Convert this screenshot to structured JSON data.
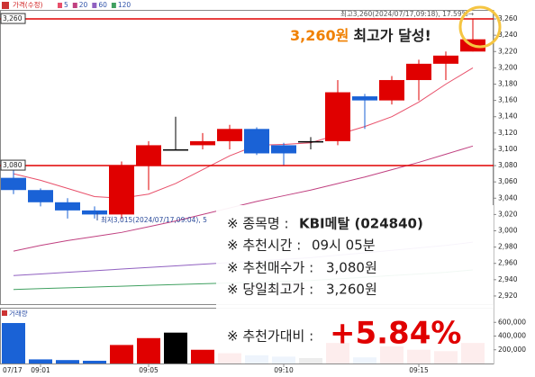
{
  "chart_data": [
    {
      "type": "candlestick",
      "date_label": "07/17",
      "categories": [
        null,
        "09:01",
        null,
        null,
        null,
        "09:05",
        null,
        null,
        null,
        null,
        "09:10",
        null,
        null,
        null,
        null,
        "09:15",
        null,
        null
      ],
      "up_color": "#e00000",
      "down_color": "#1a62d6",
      "series": [
        {
          "name": "가격(수정)",
          "color": "#d02020",
          "open": [
            3065,
            3050,
            3035,
            3025,
            3020,
            3080,
            3100,
            3105,
            3110,
            3125,
            3105,
            3110,
            3110,
            3165,
            3160,
            3185,
            3205,
            3220
          ],
          "high": [
            3075,
            3052,
            3040,
            3030,
            3085,
            3110,
            3140,
            3120,
            3130,
            3127,
            3108,
            3115,
            3185,
            3168,
            3190,
            3210,
            3220,
            3260
          ],
          "low": [
            3045,
            3030,
            3015,
            3015,
            3015,
            3050,
            3100,
            3100,
            3100,
            3093,
            3080,
            3100,
            3105,
            3125,
            3155,
            3160,
            3185,
            3220
          ],
          "close": [
            3050,
            3035,
            3025,
            3020,
            3080,
            3105,
            3100,
            3110,
            3125,
            3095,
            3095,
            3110,
            3170,
            3160,
            3185,
            3205,
            3215,
            3235
          ]
        },
        {
          "name": "5",
          "color": "#e8506a",
          "values": [
            3070,
            3062,
            3052,
            3042,
            3040,
            3045,
            3058,
            3075,
            3092,
            3105,
            3106,
            3108,
            3118,
            3128,
            3140,
            3158,
            3180,
            3200
          ]
        },
        {
          "name": "20",
          "color": "#c04080",
          "values": [
            2975,
            2982,
            2988,
            2993,
            2998,
            3005,
            3012,
            3020,
            3028,
            3036,
            3043,
            3050,
            3058,
            3066,
            3075,
            3084,
            3094,
            3104
          ]
        },
        {
          "name": "60",
          "color": "#9060c0",
          "values": [
            2945,
            2947,
            2949,
            2951,
            2953,
            2955,
            2957,
            2959,
            2961,
            2963,
            2965,
            2967,
            2970,
            2973,
            2976,
            2979,
            2982,
            2986
          ]
        },
        {
          "name": "120",
          "color": "#40a060",
          "values": [
            2928,
            2929,
            2930,
            2931,
            2932,
            2933,
            2934,
            2935,
            2936,
            2937,
            2938,
            2939,
            2941,
            2943,
            2945,
            2947,
            2949,
            2952
          ]
        }
      ],
      "ylim": [
        2910,
        3270
      ],
      "yticks": [
        {
          "value": 2920,
          "label": "2,920"
        },
        {
          "value": 2940,
          "label": "2,940"
        },
        {
          "value": 2960,
          "label": "2,960"
        },
        {
          "value": 2980,
          "label": "2,980"
        },
        {
          "value": 3000,
          "label": "3,000"
        },
        {
          "value": 3020,
          "label": "3,020"
        },
        {
          "value": 3040,
          "label": "3,040"
        },
        {
          "value": 3060,
          "label": "3,060"
        },
        {
          "value": 3080,
          "label": "3,080"
        },
        {
          "value": 3100,
          "label": "3,100"
        },
        {
          "value": 3120,
          "label": "3,120"
        },
        {
          "value": 3140,
          "label": "3,140"
        },
        {
          "value": 3160,
          "label": "3,160"
        },
        {
          "value": 3180,
          "label": "3,180"
        },
        {
          "value": 3200,
          "label": "3,200"
        },
        {
          "value": 3220,
          "label": "3,220"
        },
        {
          "value": 3240,
          "label": "3,240"
        },
        {
          "value": 3260,
          "label": "3,260"
        }
      ],
      "hlines": [
        {
          "value": 3260,
          "label": "3,260",
          "color": "#e00000"
        },
        {
          "value": 3080,
          "label": "3,080",
          "color": "#e00000"
        }
      ],
      "annotations": {
        "high": "최고3,260(2024/07/17,09:18), 17.59%→",
        "low": "최저3,015(2024/07/17,09:04), 5"
      }
    },
    {
      "type": "bar",
      "title": "거래량",
      "values": [
        590000,
        60000,
        50000,
        40000,
        270000,
        370000,
        450000,
        200000,
        150000,
        120000,
        100000,
        80000,
        300000,
        90000,
        250000,
        200000,
        180000,
        300000
      ],
      "colors": [
        "#1a62d6",
        "#1a62d6",
        "#1a62d6",
        "#1a62d6",
        "#e00000",
        "#e00000",
        "#000000",
        "#e00000",
        "#e00000",
        "#1a62d6",
        "#1a62d6",
        "#000000",
        "#e00000",
        "#1a62d6",
        "#e00000",
        "#e00000",
        "#e00000",
        "#e00000"
      ],
      "ylim": [
        0,
        800000
      ],
      "yticks": [
        {
          "value": 200000,
          "label": "200,000"
        },
        {
          "value": 400000,
          "label": "400,000"
        },
        {
          "value": 600000,
          "label": "600,000"
        }
      ]
    }
  ],
  "callout": {
    "highlight": "3,260원",
    "text": "최고가 달성!"
  },
  "info_box": {
    "rows": [
      {
        "label": "※ 종목명 :",
        "value": "KBI메탈 (024840)"
      },
      {
        "label": "※ 추천시간 :",
        "value": "09시 05분"
      },
      {
        "label": "※ 추천매수가 :",
        "value": "3,080원"
      },
      {
        "label": "※ 당일최고가 :",
        "value": "3,260원"
      }
    ],
    "result": {
      "label": "※ 추천가대비 :",
      "value": "+5.84%"
    }
  }
}
